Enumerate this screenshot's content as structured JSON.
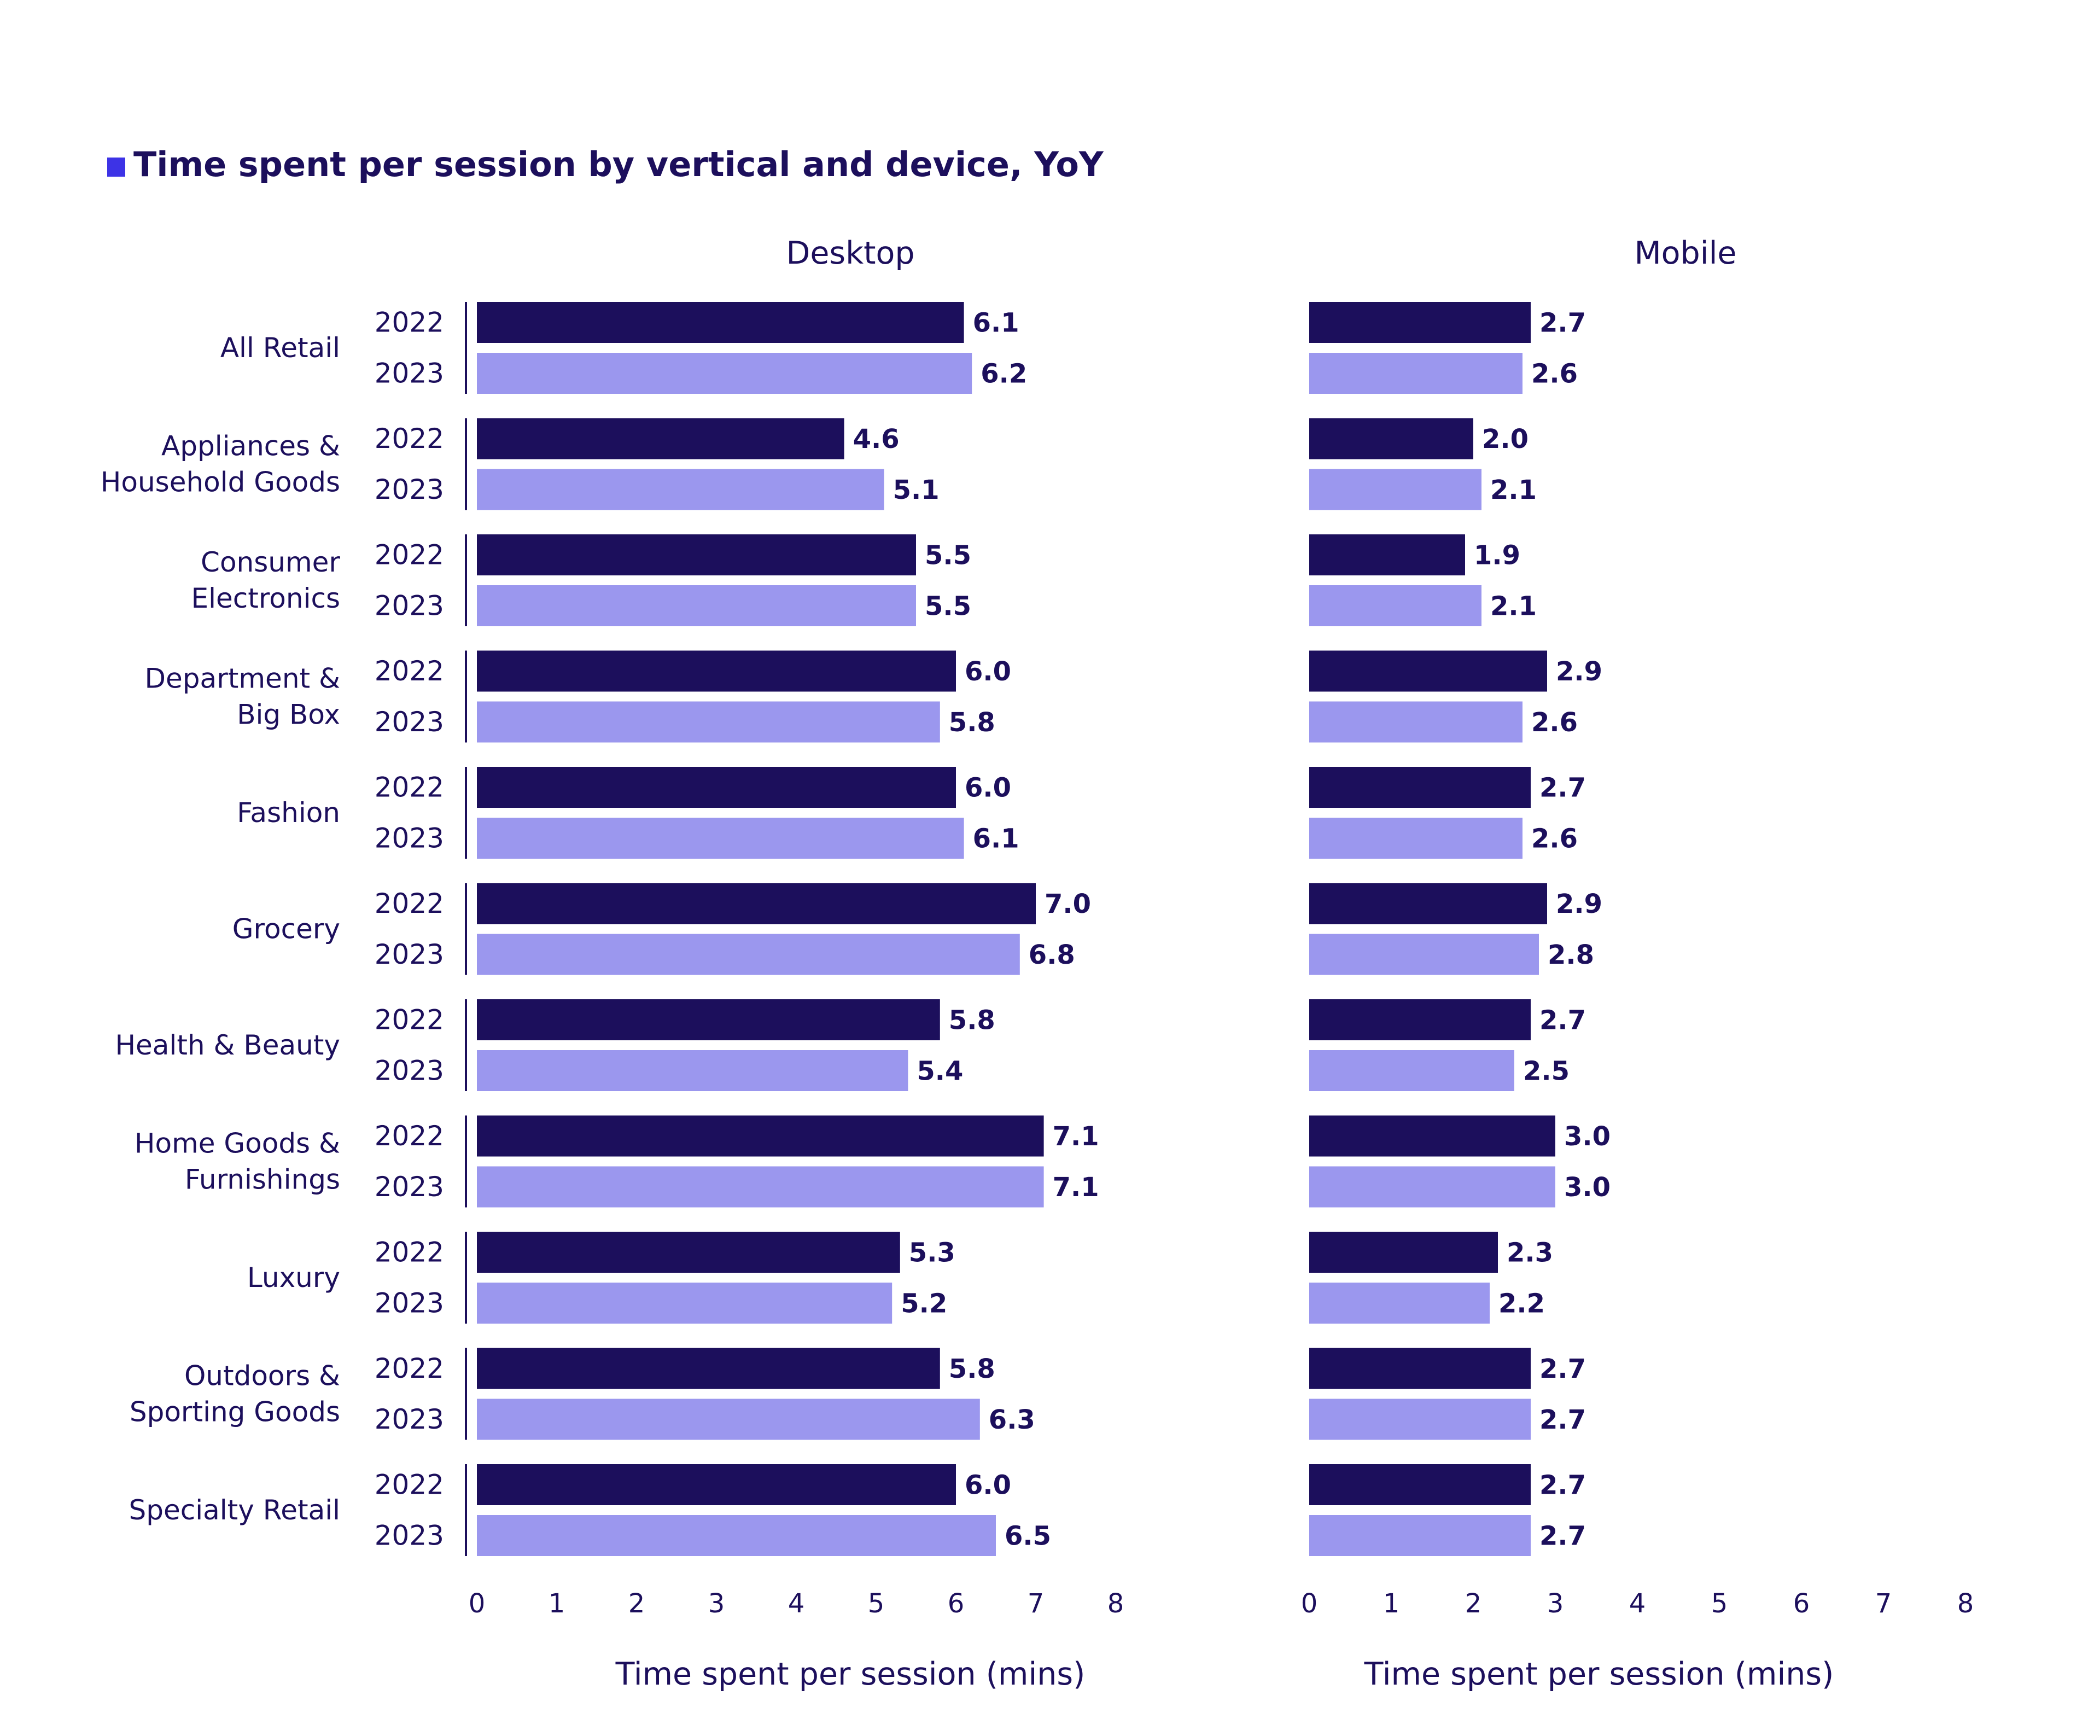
{
  "chart_data": {
    "type": "bar",
    "orientation": "horizontal",
    "title": "Time spent per session by vertical and device, YoY",
    "title_marker_color": "#3d33e6",
    "categories": [
      [
        "All Retail"
      ],
      [
        "Appliances &",
        "Household Goods"
      ],
      [
        "Consumer",
        "Electronics"
      ],
      [
        "Department &",
        "Big Box"
      ],
      [
        "Fashion"
      ],
      [
        "Grocery"
      ],
      [
        "Health & Beauty"
      ],
      [
        "Home Goods &",
        "Furnishings"
      ],
      [
        "Luxury"
      ],
      [
        "Outdoors &",
        "Sporting Goods"
      ],
      [
        "Specialty Retail"
      ]
    ],
    "series_names": [
      "2022",
      "2023"
    ],
    "series_colors": [
      "#1c0f5c",
      "#9b97ee"
    ],
    "panels": [
      {
        "title": "Desktop",
        "xlabel": "Time spent per session (mins)",
        "xlim": [
          0,
          8
        ],
        "ticks": [
          0,
          1,
          2,
          3,
          4,
          5,
          6,
          7,
          8
        ],
        "series": [
          {
            "name": "2022",
            "values": [
              6.1,
              4.6,
              5.5,
              6.0,
              6.0,
              7.0,
              5.8,
              7.1,
              5.3,
              5.8,
              6.0
            ]
          },
          {
            "name": "2023",
            "values": [
              6.2,
              5.1,
              5.5,
              5.8,
              6.1,
              6.8,
              5.4,
              7.1,
              5.2,
              6.3,
              6.5
            ]
          }
        ]
      },
      {
        "title": "Mobile",
        "xlabel": "Time spent per session (mins)",
        "xlim": [
          0,
          8
        ],
        "ticks": [
          0,
          1,
          2,
          3,
          4,
          5,
          6,
          7,
          8
        ],
        "series": [
          {
            "name": "2022",
            "values": [
              2.7,
              2.0,
              1.9,
              2.9,
              2.7,
              2.9,
              2.7,
              3.0,
              2.3,
              2.7,
              2.7
            ]
          },
          {
            "name": "2023",
            "values": [
              2.6,
              2.1,
              2.1,
              2.6,
              2.6,
              2.8,
              2.5,
              3.0,
              2.2,
              2.7,
              2.7
            ]
          }
        ]
      }
    ]
  }
}
